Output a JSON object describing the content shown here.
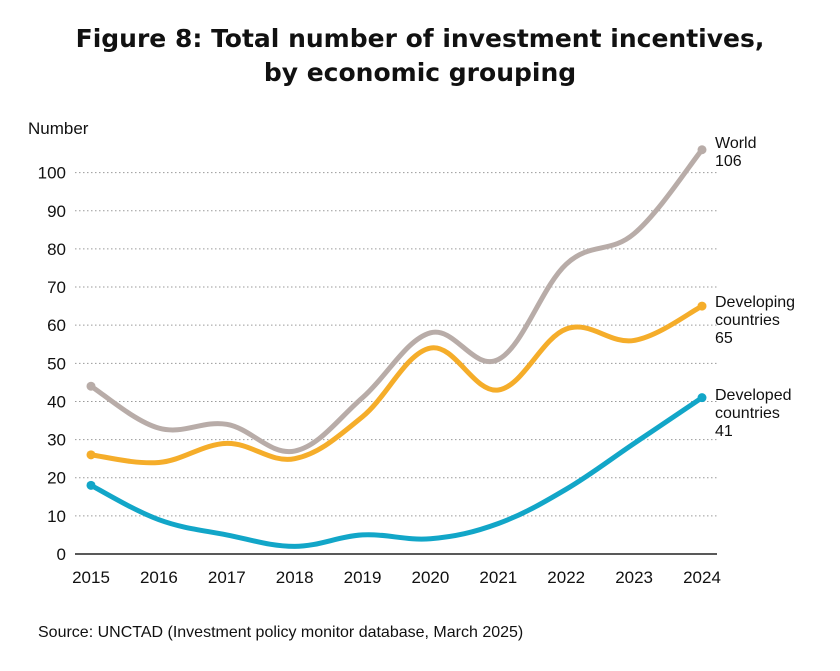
{
  "title": {
    "line1": "Figure 8: Total number of investment incentives,",
    "line2": "by economic grouping"
  },
  "source": "Source: UNCTAD (Investment policy monitor database, March 2025)",
  "chart_data": {
    "type": "line",
    "title": "Figure 8: Total number of investment incentives, by economic grouping",
    "xlabel": "",
    "ylabel": "Number",
    "categories": [
      "2015",
      "2016",
      "2017",
      "2018",
      "2019",
      "2020",
      "2021",
      "2022",
      "2023",
      "2024"
    ],
    "ylim": [
      0,
      100
    ],
    "yticks": [
      0,
      10,
      20,
      30,
      40,
      50,
      60,
      70,
      80,
      90,
      100
    ],
    "grid": true,
    "series": [
      {
        "name": "World",
        "color": "#b8aca8",
        "values": [
          44,
          33,
          34,
          27,
          41,
          58,
          51,
          76,
          84,
          106
        ],
        "label_lines": [
          "World",
          "106"
        ]
      },
      {
        "name": "Developing countries",
        "color": "#f5ad2a",
        "values": [
          26,
          24,
          29,
          25,
          36,
          54,
          43,
          59,
          56,
          65
        ],
        "label_lines": [
          "Developing",
          "countries",
          "65"
        ]
      },
      {
        "name": "Developed countries",
        "color": "#12a6c8",
        "values": [
          18,
          9,
          5,
          2,
          5,
          4,
          8,
          17,
          29,
          41
        ],
        "label_lines": [
          "Developed",
          "countries",
          "41"
        ]
      }
    ]
  }
}
